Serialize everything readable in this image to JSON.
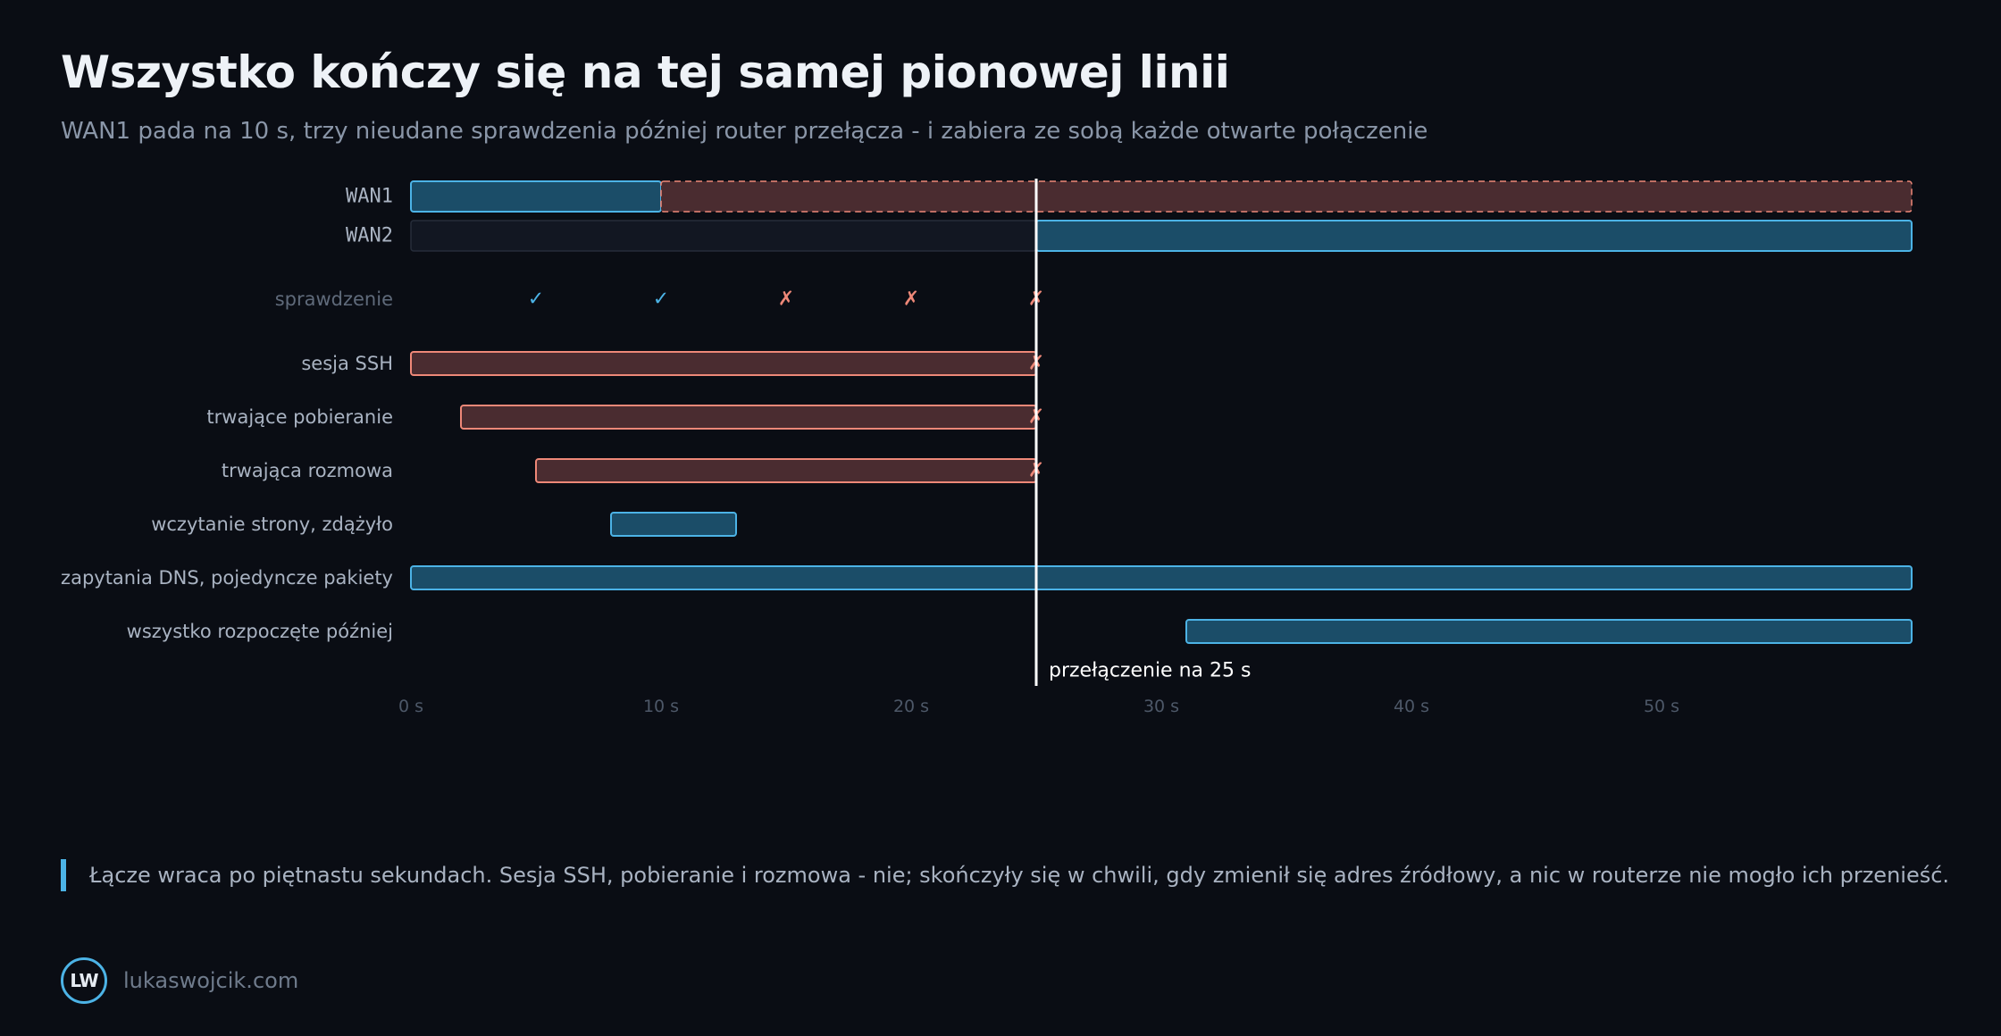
{
  "header": {
    "title": "Wszystko kończy się na tej samej pionowej linii",
    "subtitle": "WAN1 pada na 10 s, trzy nieudane sprawdzenia później router przełącza - i zabiera ze sobą każde otwarte połączenie"
  },
  "chart_data": {
    "type": "gantt",
    "xlim": [
      0,
      60
    ],
    "x_ticks": [
      0,
      10,
      20,
      30,
      40,
      50
    ],
    "x_tick_unit": "s",
    "colors": {
      "active": "#4cb3e6",
      "active_fill": "#1b4d68",
      "failed": "#ee8878",
      "failed_fill": "#4a2c30",
      "idle_fill": "#121722",
      "idle_stroke": "#262d3a",
      "check_ok": "#4cb3e6",
      "check_fail": "#ee8878",
      "marker": "#ffffff"
    },
    "links": [
      {
        "label": "WAN1",
        "segments": [
          {
            "start": 0,
            "end": 10,
            "state": "active"
          },
          {
            "start": 10,
            "end": 60,
            "state": "down"
          }
        ]
      },
      {
        "label": "WAN2",
        "segments": [
          {
            "start": 0,
            "end": 25,
            "state": "idle"
          },
          {
            "start": 25,
            "end": 60,
            "state": "active"
          }
        ]
      }
    ],
    "checks": {
      "label": "sprawdzenie",
      "ok_symbol": "✓",
      "fail_symbol": "✗",
      "points": [
        {
          "t": 5,
          "ok": true
        },
        {
          "t": 10,
          "ok": true
        },
        {
          "t": 15,
          "ok": false
        },
        {
          "t": 20,
          "ok": false
        },
        {
          "t": 25,
          "ok": false
        }
      ]
    },
    "connections": [
      {
        "label": "sesja SSH",
        "start": 0,
        "end": 25,
        "state": "killed"
      },
      {
        "label": "trwające pobieranie",
        "start": 2,
        "end": 25,
        "state": "killed"
      },
      {
        "label": "trwająca rozmowa",
        "start": 5,
        "end": 25,
        "state": "killed"
      },
      {
        "label": "wczytanie strony, zdążyło",
        "start": 8,
        "end": 13,
        "state": "ok"
      },
      {
        "label": "zapytania DNS, pojedyncze pakiety",
        "start": 0,
        "end": 60,
        "state": "ok"
      },
      {
        "label": "wszystko rozpoczęte później",
        "start": 31,
        "end": 60,
        "state": "ok"
      }
    ],
    "killed_symbol": "✗",
    "switchover": {
      "t": 25,
      "label": "przełączenie na 25 s"
    }
  },
  "caption": "Łącze wraca po piętnastu sekundach. Sesja SSH, pobieranie i rozmowa - nie; skończyły się w chwili, gdy zmienił się adres źródłowy, a nic w routerze nie mogło ich przenieść.",
  "footer": {
    "logo_text": "LW",
    "site": "lukaswojcik.com"
  }
}
